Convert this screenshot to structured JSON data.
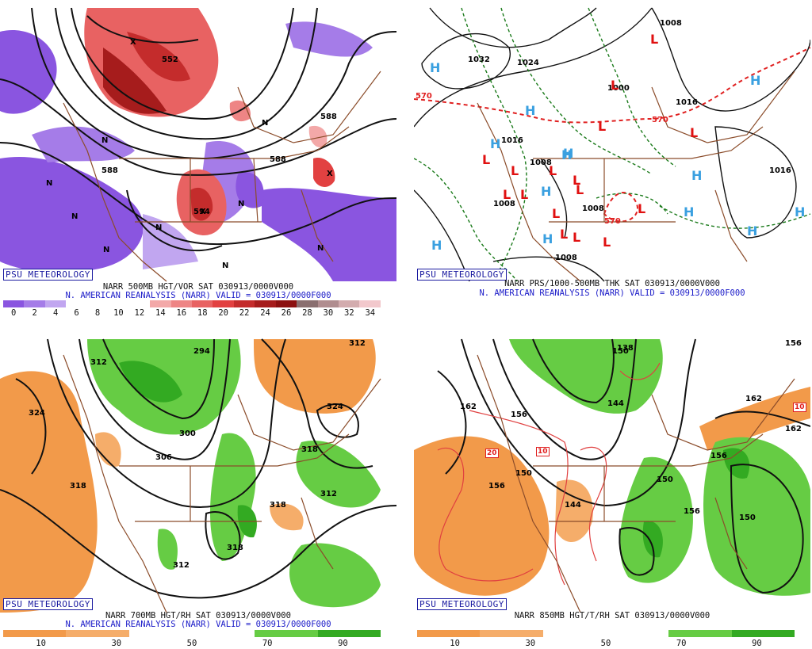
{
  "panels": [
    {
      "id": "vort500",
      "logo": "PSU METEOROLOGY",
      "caption1": "NARR 500MB HGT/VOR SAT 030913/0000V000",
      "caption2": "N. AMERICAN REANALYSIS (NARR) VALID = 030913/0000F000",
      "colorbar": {
        "colors": [
          "#8a55e0",
          "#a57ce8",
          "#c1a6f0",
          "#ffffff",
          "#ffffff",
          "#ffffff",
          "#ffffff",
          "#f3a8a8",
          "#ee8585",
          "#e86262",
          "#e24141",
          "#c42c2c",
          "#a61c1c",
          "#8c1010",
          "#8a6f70",
          "#b08d8f",
          "#d3acae",
          "#f2c8cc"
        ],
        "tick_labels": [
          "0",
          "2",
          "4",
          "6",
          "8",
          "10",
          "12",
          "14",
          "16",
          "18",
          "20",
          "22",
          "24",
          "26",
          "28",
          "30",
          "32",
          "34"
        ]
      },
      "contour_labels": [
        "552",
        "588",
        "588",
        "588",
        "594"
      ],
      "symbols": [
        {
          "type": "N"
        },
        {
          "type": "N"
        },
        {
          "type": "N"
        },
        {
          "type": "N"
        },
        {
          "type": "N"
        },
        {
          "type": "N"
        },
        {
          "type": "N"
        },
        {
          "type": "N"
        },
        {
          "type": "N"
        },
        {
          "type": "X"
        },
        {
          "type": "X"
        },
        {
          "type": "X"
        }
      ]
    },
    {
      "id": "prs",
      "logo": "PSU METEOROLOGY",
      "caption1": "NARR PRS/1000-500MB THK SAT 030913/0000V000",
      "caption2": "N. AMERICAN REANALYSIS (NARR) VALID = 030913/0000F000",
      "contour_labels": [
        "1032",
        "1024",
        "1008",
        "1000",
        "1016",
        "1016",
        "1008",
        "1008",
        "1008",
        "1008",
        "1016",
        "570",
        "570",
        "570"
      ],
      "high_centers": [
        "H",
        "H",
        "H",
        "H",
        "H",
        "H",
        "H",
        "H",
        "H",
        "H",
        "H",
        "H",
        "H"
      ],
      "low_centers": [
        "L",
        "L",
        "L",
        "L",
        "L",
        "L",
        "L",
        "L",
        "L",
        "L",
        "L",
        "L",
        "L",
        "L",
        "L",
        "L"
      ]
    },
    {
      "id": "rh700",
      "logo": "PSU METEOROLOGY",
      "caption1": "NARR 700MB HGT/RH SAT 030913/0000V000",
      "caption2": "N. AMERICAN REANALYSIS (NARR) VALID = 030913/0000F000",
      "colorbar": {
        "colors": [
          "#f29a4a",
          "#f5ad6a",
          "#ffffff",
          "#ffffff",
          "#66cc44",
          "#33aa22"
        ],
        "tick_labels": [
          "10",
          "30",
          "50",
          "70",
          "90"
        ]
      },
      "contour_labels": [
        "312",
        "324",
        "294",
        "300",
        "306",
        "318",
        "318",
        "324",
        "318",
        "318",
        "312",
        "312",
        "312"
      ]
    },
    {
      "id": "rh850",
      "logo": "PSU METEOROLOGY",
      "caption1": "NARR 850MB HGT/T/RH SAT 030913/0000V000",
      "colorbar": {
        "colors": [
          "#f29a4a",
          "#f5ad6a",
          "#ffffff",
          "#ffffff",
          "#66cc44",
          "#33aa22"
        ],
        "tick_labels": [
          "10",
          "30",
          "50",
          "70",
          "90"
        ]
      },
      "contour_labels": [
        "162",
        "156",
        "156",
        "150",
        "144",
        "150",
        "156",
        "150",
        "156",
        "162",
        "162",
        "156",
        "150",
        "138",
        "144"
      ],
      "temp_labels": [
        "20",
        "10",
        "10"
      ]
    }
  ]
}
